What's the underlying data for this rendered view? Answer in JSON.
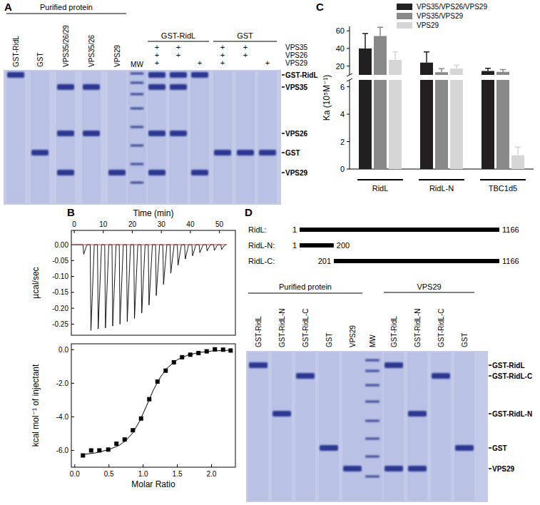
{
  "panels": [
    "A",
    "B",
    "C",
    "D"
  ],
  "gel_a": {
    "header": "Purified protein",
    "groups": [
      "GST-RidL",
      "GST"
    ],
    "rows": [
      "VPS35",
      "VPS26",
      "VPS29"
    ],
    "band_labels": [
      "GST-RidL",
      "VPS35",
      "VPS26",
      "GST",
      "VPS29"
    ],
    "lanes": [
      {
        "label": "GST-RidL",
        "bands": [
          "GST-RidL"
        ]
      },
      {
        "label": "GST",
        "bands": [
          "GST"
        ]
      },
      {
        "label": "VPS35/26/29",
        "bands": [
          "VPS35",
          "VPS26",
          "VPS29"
        ]
      },
      {
        "label": "VPS35/26",
        "bands": [
          "VPS35",
          "VPS26"
        ]
      },
      {
        "label": "VPS29",
        "bands": [
          "VPS29"
        ]
      },
      {
        "label": "MW",
        "ladder": true,
        "bands": []
      },
      {
        "group": 0,
        "plus": [
          "+",
          "+",
          "+"
        ],
        "bands": [
          "GST-RidL",
          "VPS35",
          "VPS26",
          "VPS29"
        ]
      },
      {
        "group": 0,
        "plus": [
          "+",
          "+",
          null
        ],
        "bands": [
          "GST-RidL",
          "VPS35",
          "VPS26"
        ]
      },
      {
        "group": 0,
        "plus": [
          null,
          null,
          "+"
        ],
        "bands": [
          "GST-RidL",
          "VPS29"
        ]
      },
      {
        "group": 1,
        "plus": [
          "+",
          "+",
          "+"
        ],
        "bands": [
          "GST"
        ]
      },
      {
        "group": 1,
        "plus": [
          "+",
          "+",
          null
        ],
        "bands": [
          "GST"
        ]
      },
      {
        "group": 1,
        "plus": [
          null,
          null,
          "+"
        ],
        "bands": [
          "GST"
        ]
      }
    ]
  },
  "chart_data": [
    {
      "type": "line",
      "xlabel": "Time (min)",
      "ylabel": "µcal/sec",
      "xlim": [
        -1,
        55.5
      ],
      "ylim": [
        -0.285,
        0.045
      ],
      "xticks": [
        0,
        10,
        20,
        30,
        40,
        50
      ],
      "yticks": [
        {
          "value": 0,
          "label": "0.00"
        },
        {
          "value": -0.05,
          "label": "-0.05"
        },
        {
          "value": -0.1,
          "label": "-0.10"
        },
        {
          "value": -0.15,
          "label": "-0.15"
        },
        {
          "value": -0.2,
          "label": "-0.20"
        },
        {
          "value": -0.25,
          "label": "-0.25"
        }
      ],
      "series": [
        {
          "color": "#000000",
          "x": [
            0,
            3,
            3.25,
            4.4,
            5.5,
            5.75,
            6.9,
            8,
            8.25,
            9.4,
            10.5,
            10.75,
            11.9,
            13,
            13.25,
            14.4,
            15.5,
            15.75,
            16.9,
            18,
            18.25,
            19.4,
            20.5,
            20.75,
            21.9,
            23,
            23.25,
            24.4,
            25.5,
            25.75,
            26.9,
            28,
            28.25,
            29.4,
            30.5,
            30.75,
            31.9,
            33,
            33.25,
            34.4,
            35.5,
            35.75,
            36.9,
            38,
            38.25,
            39.4,
            40.5,
            40.75,
            41.9,
            43,
            43.25,
            44.4,
            45.5,
            45.75,
            46.9,
            48,
            48.25,
            49.4,
            50.5,
            50.75,
            51.9,
            52.5
          ],
          "values": [
            0,
            0,
            -0.03,
            0,
            0,
            -0.27,
            0,
            0,
            -0.265,
            0,
            0,
            -0.262,
            0,
            0,
            -0.256,
            0,
            0,
            -0.25,
            0,
            0,
            -0.242,
            0,
            0,
            -0.232,
            0,
            0,
            -0.215,
            0,
            0,
            -0.19,
            0,
            0,
            -0.16,
            0,
            0,
            -0.125,
            0,
            0,
            -0.09,
            0,
            0,
            -0.065,
            0,
            0,
            -0.045,
            0,
            0,
            -0.035,
            0,
            0,
            -0.025,
            0,
            0,
            -0.02,
            0,
            0,
            -0.018,
            0,
            0,
            -0.015,
            0,
            0
          ]
        },
        {
          "color": "#c0392b",
          "x": [
            0,
            52.5
          ],
          "values": [
            0,
            0
          ]
        }
      ]
    },
    {
      "type": "scatter",
      "xlabel": "Molar Ratio",
      "ylabel": "kcal mol⁻¹ of injectant",
      "xlim": [
        -0.05,
        2.35
      ],
      "ylim": [
        -7,
        0.35
      ],
      "xticks": [
        {
          "value": 0,
          "label": "0.0"
        },
        {
          "value": 0.5,
          "label": "0.5"
        },
        {
          "value": 1,
          "label": "1.0"
        },
        {
          "value": 1.5,
          "label": "1.5"
        },
        {
          "value": 2,
          "label": "2.0"
        }
      ],
      "yticks": [
        {
          "value": 0,
          "label": "0.0"
        },
        {
          "value": -2,
          "label": "-2.0"
        },
        {
          "value": -4,
          "label": "-4.0"
        },
        {
          "value": -6,
          "label": "-6.0"
        }
      ],
      "series": [
        {
          "type": "scatter",
          "marker": "square",
          "color": "#000000",
          "x": [
            0.12,
            0.24,
            0.36,
            0.49,
            0.61,
            0.73,
            0.85,
            0.97,
            1.09,
            1.21,
            1.33,
            1.45,
            1.57,
            1.69,
            1.81,
            1.93,
            2.05,
            2.17,
            2.28
          ],
          "values": [
            -6.3,
            -6.0,
            -6.0,
            -5.95,
            -5.6,
            -5.35,
            -4.8,
            -4.1,
            -2.95,
            -1.9,
            -1.25,
            -0.75,
            -0.45,
            -0.3,
            -0.2,
            -0.1,
            0.02,
            0.0,
            -0.05
          ]
        },
        {
          "type": "line",
          "color": "#000000",
          "x": [
            0.1,
            0.3,
            0.5,
            0.65,
            0.75,
            0.85,
            0.95,
            1.05,
            1.15,
            1.25,
            1.35,
            1.5,
            1.65,
            1.8,
            2.0,
            2.3
          ],
          "values": [
            -6.25,
            -6.15,
            -5.95,
            -5.7,
            -5.4,
            -4.95,
            -4.25,
            -3.35,
            -2.4,
            -1.65,
            -1.1,
            -0.6,
            -0.33,
            -0.18,
            -0.08,
            -0.03
          ]
        }
      ]
    },
    {
      "type": "bar",
      "ylabel": "Ka (10⁵M⁻¹)",
      "categories": [
        "RidL",
        "RidL-N",
        "TBC1d5"
      ],
      "legend": "top",
      "ylim": [
        0,
        65
      ],
      "y_break": [
        6.5,
        10
      ],
      "yticks": [
        0,
        2,
        4,
        6,
        20,
        40,
        60
      ],
      "series": [
        {
          "name": "VPS35/VPS26/VPS29",
          "color": "#231f20",
          "values": [
            40,
            24,
            14.5
          ],
          "errors": [
            17,
            12,
            3
          ]
        },
        {
          "name": "VPS35/VPS29",
          "color": "#898989",
          "values": [
            54,
            13,
            13.5
          ],
          "errors": [
            10,
            4,
            2.5
          ]
        },
        {
          "name": "VPS29",
          "color": "#d6d6d6",
          "values": [
            27,
            17,
            1.0
          ],
          "errors": [
            9,
            4,
            0.6
          ]
        }
      ]
    }
  ],
  "schematic_d": {
    "constructs": [
      {
        "label": "RidL:",
        "start": 1,
        "end": 1166
      },
      {
        "label": "RidL-N:",
        "start": 1,
        "end": 200
      },
      {
        "label": "RidL-C:",
        "start": 201,
        "end": 1166
      }
    ]
  },
  "gel_d": {
    "header": "Purified protein",
    "groups": [
      "VPS29"
    ],
    "band_labels": [
      "GST-RidL",
      "GST-RidL-C",
      "GST-RidL-N",
      "GST",
      "VPS29"
    ],
    "lanes": [
      {
        "label": "GST-RidL",
        "bands": [
          "GST-RidL"
        ]
      },
      {
        "label": "GST-RidL-N",
        "bands": [
          "GST-RidL-N"
        ]
      },
      {
        "label": "GST-RidL-C",
        "bands": [
          "GST-RidL-C"
        ]
      },
      {
        "label": "GST",
        "bands": [
          "GST"
        ]
      },
      {
        "label": "VPS29",
        "bands": [
          "VPS29"
        ]
      },
      {
        "label": "MW",
        "ladder": true,
        "bands": []
      },
      {
        "label": "GST-RidL",
        "group": 0,
        "bands": [
          "GST-RidL",
          "VPS29"
        ]
      },
      {
        "label": "GST-RidL-N",
        "group": 0,
        "bands": [
          "GST-RidL-N",
          "VPS29"
        ]
      },
      {
        "label": "GST-RidL-C",
        "group": 0,
        "bands": [
          "GST-RidL-C"
        ]
      },
      {
        "label": "GST",
        "group": 0,
        "bands": [
          "GST"
        ]
      }
    ]
  }
}
